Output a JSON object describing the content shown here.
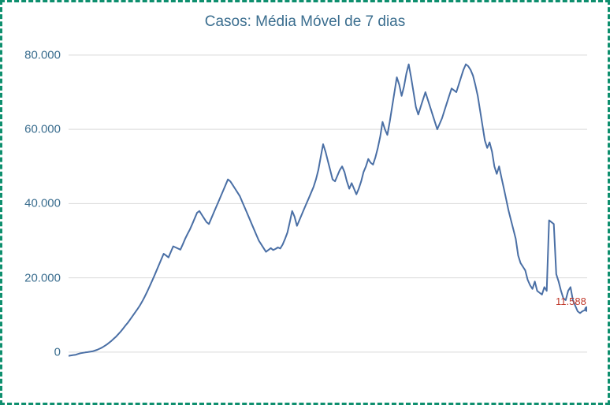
{
  "chart": {
    "type": "line",
    "title": "Casos: Média Móvel de 7 dias",
    "title_fontsize": 19,
    "title_color": "#3b6e8f",
    "border_color": "#0e8f6e",
    "background_color": "#ffffff",
    "grid_color": "#d9d9d9",
    "axis_label_color": "#3b6e8f",
    "axis_label_fontsize": 15,
    "series_color": "#4a6fa5",
    "line_width": 2,
    "ylim": [
      -3000,
      84000
    ],
    "yticks": [
      0,
      20000,
      40000,
      60000,
      80000
    ],
    "ytick_labels": [
      "0",
      "20.000",
      "40.000",
      "60.000",
      "80.000"
    ],
    "last_value": 11588,
    "last_label": "11.588",
    "last_label_color": "#c0392b",
    "last_point_color": "#4a6fa5",
    "values": [
      -1000,
      -900,
      -800,
      -700,
      -500,
      -300,
      -200,
      -100,
      0,
      100,
      200,
      400,
      600,
      900,
      1200,
      1600,
      2000,
      2500,
      3000,
      3600,
      4200,
      4900,
      5600,
      6400,
      7200,
      8000,
      8900,
      9800,
      10700,
      11600,
      12600,
      13700,
      14900,
      16200,
      17600,
      19000,
      20500,
      22000,
      23500,
      25000,
      26500,
      26000,
      25500,
      27000,
      28500,
      28200,
      27900,
      27600,
      29000,
      30500,
      31800,
      33000,
      34500,
      36000,
      37500,
      38000,
      37000,
      36000,
      35000,
      34500,
      36000,
      37500,
      39000,
      40500,
      42000,
      43500,
      45000,
      46500,
      46000,
      45000,
      44000,
      43000,
      42000,
      40500,
      39000,
      37500,
      36000,
      34500,
      33000,
      31500,
      30000,
      29000,
      28000,
      27000,
      27500,
      28000,
      27500,
      27800,
      28200,
      27900,
      29000,
      30500,
      32200,
      35000,
      38000,
      36500,
      34000,
      35500,
      37000,
      38500,
      40000,
      41500,
      43000,
      44500,
      46500,
      49000,
      52500,
      56000,
      54000,
      51500,
      49000,
      46500,
      46000,
      47500,
      49000,
      50000,
      48500,
      46000,
      44000,
      45500,
      44000,
      42500,
      44000,
      46000,
      48500,
      50000,
      52000,
      51000,
      50500,
      52500,
      55000,
      58000,
      62000,
      60000,
      58500,
      62000,
      66000,
      70000,
      74000,
      72000,
      69000,
      71500,
      75000,
      77500,
      74000,
      70000,
      66000,
      64000,
      66000,
      68000,
      70000,
      68000,
      66000,
      64000,
      62000,
      60000,
      61500,
      63000,
      65000,
      67000,
      69000,
      71000,
      70500,
      70000,
      72000,
      74000,
      76000,
      77500,
      77000,
      76000,
      74500,
      72000,
      69000,
      65000,
      61000,
      57000,
      55000,
      56500,
      54000,
      50000,
      48000,
      50000,
      47000,
      44000,
      41000,
      38000,
      35500,
      33000,
      30500,
      26000,
      24000,
      23000,
      22000,
      19500,
      18000,
      17000,
      19000,
      16500,
      16000,
      15500,
      17500,
      16500,
      35500,
      35000,
      34500,
      21000,
      19000,
      16500,
      14500,
      14000,
      16500,
      17500,
      14000,
      12500,
      11000,
      10500,
      11000,
      11300,
      11588
    ]
  }
}
